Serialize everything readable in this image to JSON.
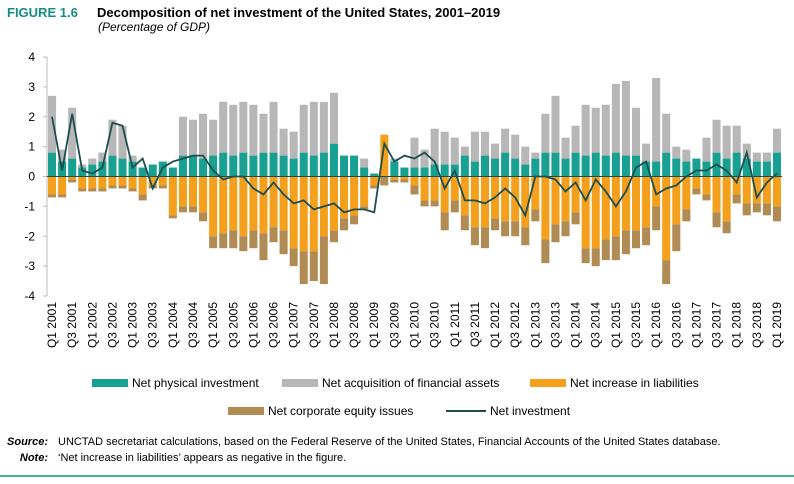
{
  "chart_data": {
    "type": "bar",
    "figure_label": "FIGURE 1.6",
    "title": "Decomposition of net investment of the United States, 2001–2019",
    "subtitle": "(Percentage of GDP)",
    "categories": [
      "Q1 2001",
      null,
      "Q3 2001",
      null,
      "Q1 2002",
      null,
      "Q3 2002",
      null,
      "Q1 2003",
      null,
      "Q3 2003",
      null,
      "Q1 2004",
      null,
      "Q3 2004",
      null,
      "Q1 2005",
      null,
      "Q3 2005",
      null,
      "Q1 2006",
      null,
      "Q3 2006",
      null,
      "Q1 2007",
      null,
      "Q3 2007",
      null,
      "Q1 2008",
      null,
      "Q3 2008",
      null,
      "Q1 2009",
      null,
      "Q3 2009",
      null,
      "Q1 2010",
      null,
      "Q3 2010",
      null,
      "Q1 2011",
      null,
      "Q3 2011",
      null,
      "Q1 2012",
      null,
      "Q3 2012",
      null,
      "Q1 2013",
      null,
      "Q3 2013",
      null,
      "Q1 2014",
      null,
      "Q3 2014",
      null,
      "Q1 2015",
      null,
      "Q3 2015",
      null,
      "Q1 2016",
      null,
      "Q3 2016",
      null,
      "Q1 2017",
      null,
      "Q3 2017",
      null,
      "Q1 2018",
      null,
      "Q3 2018",
      null,
      "Q1 2019"
    ],
    "series": [
      {
        "name": "Net physical investment",
        "color": "#18a192",
        "values": [
          0.8,
          0.5,
          0.6,
          0.3,
          0.4,
          0.5,
          0.7,
          0.6,
          0.5,
          0.3,
          0.4,
          0.5,
          0.3,
          0.7,
          0.7,
          0.6,
          0.7,
          0.8,
          0.7,
          0.8,
          0.7,
          0.8,
          0.8,
          0.7,
          0.6,
          0.8,
          0.7,
          0.8,
          1.1,
          0.7,
          0.7,
          0.3,
          0.1,
          0.0,
          0.5,
          0.3,
          0.3,
          0.3,
          0.4,
          0.4,
          0.4,
          0.7,
          0.5,
          0.7,
          0.6,
          0.8,
          0.6,
          0.4,
          0.6,
          0.8,
          0.8,
          0.6,
          0.8,
          0.7,
          0.8,
          0.7,
          0.8,
          0.7,
          0.7,
          0.5,
          0.5,
          0.8,
          0.6,
          0.5,
          0.6,
          0.5,
          0.8,
          0.6,
          0.8,
          0.6,
          0.5,
          0.5,
          0.8
        ]
      },
      {
        "name": "Net acquisition of financial assets",
        "color": "#b7b7b7",
        "values": [
          1.9,
          0.4,
          1.7,
          0.1,
          0.2,
          0.3,
          1.2,
          1.1,
          0.2,
          0.0,
          0.0,
          0.0,
          0.0,
          1.3,
          1.2,
          1.5,
          1.2,
          1.7,
          1.7,
          1.7,
          1.7,
          1.3,
          1.7,
          0.9,
          0.9,
          1.6,
          1.8,
          1.7,
          1.7,
          0.0,
          0.0,
          0.3,
          0.0,
          0.0,
          0.1,
          0.0,
          1.0,
          0.6,
          1.2,
          1.1,
          0.9,
          0.3,
          1.0,
          0.8,
          0.5,
          0.8,
          0.8,
          0.6,
          0.2,
          1.3,
          1.9,
          0.7,
          0.9,
          1.7,
          1.5,
          1.7,
          2.3,
          2.5,
          1.6,
          0.6,
          2.8,
          1.3,
          0.4,
          0.4,
          0.0,
          0.8,
          1.1,
          1.1,
          0.9,
          0.5,
          0.3,
          0.3,
          0.8
        ]
      },
      {
        "name": "Net increase in liabilities",
        "color": "#f5a01c",
        "values": [
          -0.6,
          -0.6,
          -0.1,
          -0.4,
          -0.4,
          -0.4,
          -0.3,
          -0.3,
          -0.4,
          -0.6,
          -0.3,
          -0.3,
          -1.3,
          -1.0,
          -1.0,
          -1.2,
          -2.0,
          -1.9,
          -1.8,
          -2.0,
          -1.8,
          -1.9,
          -1.7,
          -1.8,
          -2.4,
          -2.5,
          -2.5,
          -2.0,
          -1.8,
          -1.4,
          -1.3,
          -1.0,
          -0.3,
          1.4,
          -0.1,
          -0.1,
          -0.3,
          -0.8,
          -0.8,
          -1.2,
          -0.8,
          -1.3,
          -1.7,
          -1.7,
          -1.4,
          -1.5,
          -1.5,
          -1.7,
          -1.1,
          -2.1,
          -1.6,
          -1.5,
          -1.2,
          -2.4,
          -2.4,
          -2.1,
          -2.0,
          -1.8,
          -1.8,
          -1.7,
          -1.0,
          -2.8,
          -1.6,
          -1.1,
          -0.4,
          -0.6,
          -1.2,
          -1.5,
          -0.6,
          -0.9,
          -0.9,
          -0.9,
          -1.0
        ]
      },
      {
        "name": "Net corporate equity issues",
        "color": "#b08c54",
        "values": [
          -0.1,
          -0.1,
          -0.1,
          -0.1,
          -0.1,
          -0.1,
          -0.1,
          -0.1,
          -0.1,
          -0.2,
          -0.1,
          -0.1,
          -0.1,
          -0.2,
          -0.2,
          -0.3,
          -0.4,
          -0.5,
          -0.6,
          -0.5,
          -0.6,
          -0.9,
          -0.5,
          -0.8,
          -0.6,
          -1.1,
          -1.0,
          -1.6,
          -0.4,
          -0.4,
          -0.3,
          -0.1,
          -0.1,
          -0.3,
          -0.1,
          -0.1,
          -0.3,
          -0.2,
          -0.2,
          -0.6,
          -0.4,
          -0.5,
          -0.6,
          -0.7,
          -0.4,
          -0.5,
          -0.5,
          -0.6,
          -0.4,
          -0.8,
          -0.6,
          -0.5,
          -0.4,
          -0.5,
          -0.6,
          -0.7,
          -0.8,
          -0.8,
          -0.6,
          -0.6,
          -0.8,
          -0.8,
          -0.9,
          -0.4,
          -0.2,
          -0.2,
          -0.5,
          -0.4,
          -0.3,
          -0.4,
          -0.3,
          -0.4,
          -0.5
        ]
      },
      {
        "name": "Net investment",
        "color": "#1d4e4c",
        "type": "line",
        "values": [
          2.0,
          0.2,
          2.1,
          0.2,
          0.1,
          0.3,
          1.8,
          1.7,
          0.3,
          0.6,
          -0.4,
          0.3,
          0.5,
          0.6,
          0.7,
          0.7,
          0.2,
          -0.1,
          0.0,
          0.0,
          -0.4,
          -0.6,
          -0.2,
          -0.6,
          -0.9,
          -0.8,
          -1.1,
          -1.0,
          -0.9,
          -1.2,
          -1.1,
          -1.1,
          -1.2,
          1.1,
          0.5,
          0.7,
          0.6,
          0.8,
          0.5,
          -0.4,
          0.2,
          -0.8,
          -0.8,
          -0.9,
          -0.7,
          -0.4,
          -0.7,
          -1.3,
          0.0,
          0.0,
          -0.1,
          -0.5,
          -0.2,
          -0.8,
          -0.1,
          -0.5,
          -1.0,
          -0.5,
          0.3,
          0.5,
          -0.6,
          -0.4,
          -0.3,
          0.0,
          0.2,
          0.2,
          0.4,
          0.2,
          -0.2,
          0.8,
          -0.7,
          -0.2,
          0.1
        ]
      }
    ],
    "ylim": [
      -4,
      4
    ],
    "yticks": [
      -4,
      -3,
      -2,
      -1,
      0,
      1,
      2,
      3,
      4
    ],
    "grid": false,
    "source_label": "Source:",
    "source": "UNCTAD secretariat calculations, based on the Federal Reserve of the United States, Financial Accounts of the United States database.",
    "note_label": "Note:",
    "note": "‘Net increase in liabilities’ appears as negative in the figure."
  }
}
